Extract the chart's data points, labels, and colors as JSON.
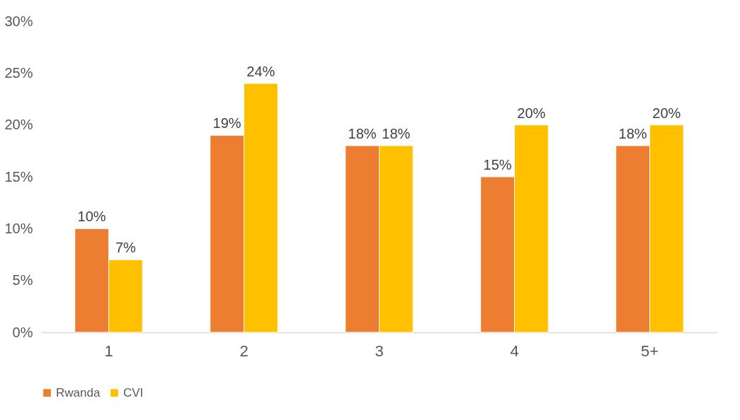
{
  "chart_data": {
    "type": "bar",
    "categories": [
      "1",
      "2",
      "3",
      "4",
      "5+"
    ],
    "series": [
      {
        "name": "Rwanda",
        "color": "#ed7d31",
        "values": [
          10,
          19,
          18,
          15,
          18
        ],
        "value_labels": [
          "10%",
          "19%",
          "18%",
          "15%",
          "18%"
        ]
      },
      {
        "name": "CVI",
        "color": "#ffc000",
        "values": [
          7,
          24,
          18,
          20,
          20
        ],
        "value_labels": [
          "7%",
          "24%",
          "18%",
          "20%",
          "20%"
        ]
      }
    ],
    "ylim": [
      0,
      30
    ],
    "yticks": [
      {
        "value": 0,
        "label": "0%"
      },
      {
        "value": 5,
        "label": "5%"
      },
      {
        "value": 10,
        "label": "10%"
      },
      {
        "value": 15,
        "label": "15%"
      },
      {
        "value": 20,
        "label": "20%"
      },
      {
        "value": 25,
        "label": "25%"
      },
      {
        "value": 30,
        "label": "30%"
      }
    ],
    "grid": false,
    "legend": "bottom"
  }
}
